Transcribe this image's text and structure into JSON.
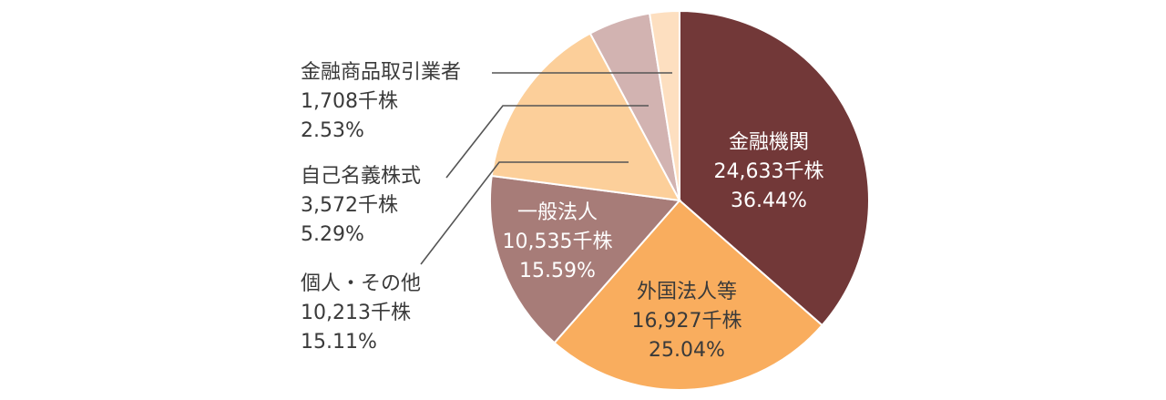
{
  "chart_data": {
    "type": "pie",
    "slices": [
      {
        "label": "金融機関",
        "value_text": "24,633千株",
        "percent_text": "36.44%",
        "value": 36.44,
        "color": "#723838",
        "label_color": "#ffffff"
      },
      {
        "label": "外国法人等",
        "value_text": "16,927千株",
        "percent_text": "25.04%",
        "value": 25.04,
        "color": "#f9ad5e",
        "label_color": "#3a3a3a"
      },
      {
        "label": "一般法人",
        "value_text": "10,535千株",
        "percent_text": "15.59%",
        "value": 15.59,
        "color": "#a77c78",
        "label_color": "#ffffff"
      },
      {
        "label": "個人・その他",
        "value_text": "10,213千株",
        "percent_text": "15.11%",
        "value": 15.11,
        "color": "#fccf9a",
        "label_color": "#3a3a3a"
      },
      {
        "label": "自己名義株式",
        "value_text": "3,572千株",
        "percent_text": "5.29%",
        "value": 5.29,
        "color": "#d2b3b1",
        "label_color": "#3a3a3a"
      },
      {
        "label": "金融商品取引業者",
        "value_text": "1,708千株",
        "percent_text": "2.53%",
        "value": 2.53,
        "color": "#fddfc0",
        "label_color": "#3a3a3a"
      }
    ]
  }
}
